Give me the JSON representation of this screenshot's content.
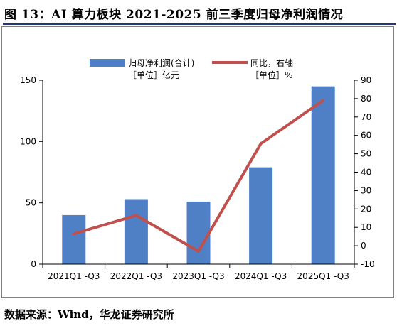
{
  "figure": {
    "title": "图 13：AI 算力板块 2021-2025 前三季度归母净利润情况",
    "source": "数据来源：Wind，华龙证券研究所"
  },
  "colors": {
    "bar": "#4f7fc4",
    "line": "#c0504d",
    "rule": "#1f3a7a"
  },
  "chart_data": {
    "type": "bar",
    "categories": [
      "2021Q1 -Q3",
      "2022Q1 -Q3",
      "2023Q1 -Q3",
      "2024Q1 -Q3",
      "2025Q1 -Q3"
    ],
    "series": [
      {
        "name": "归母净利润(合计)",
        "sublabel": "［单位］亿元",
        "type": "bar",
        "axis": "left",
        "values": [
          40,
          53,
          51,
          79,
          145
        ]
      },
      {
        "name": "同比，右轴",
        "sublabel": "［单位］%",
        "type": "line",
        "axis": "right",
        "values": [
          6.5,
          16.5,
          -3,
          55.5,
          79
        ]
      }
    ],
    "left_axis": {
      "min": 0,
      "max": 150,
      "ticks": [
        "0",
        "50",
        "100",
        "150"
      ]
    },
    "right_axis": {
      "min": -10,
      "max": 90,
      "ticks": [
        "-10",
        "0",
        "10",
        "20",
        "30",
        "40",
        "50",
        "60",
        "70",
        "80",
        "90"
      ]
    },
    "legend_position": "top",
    "grid": false
  }
}
